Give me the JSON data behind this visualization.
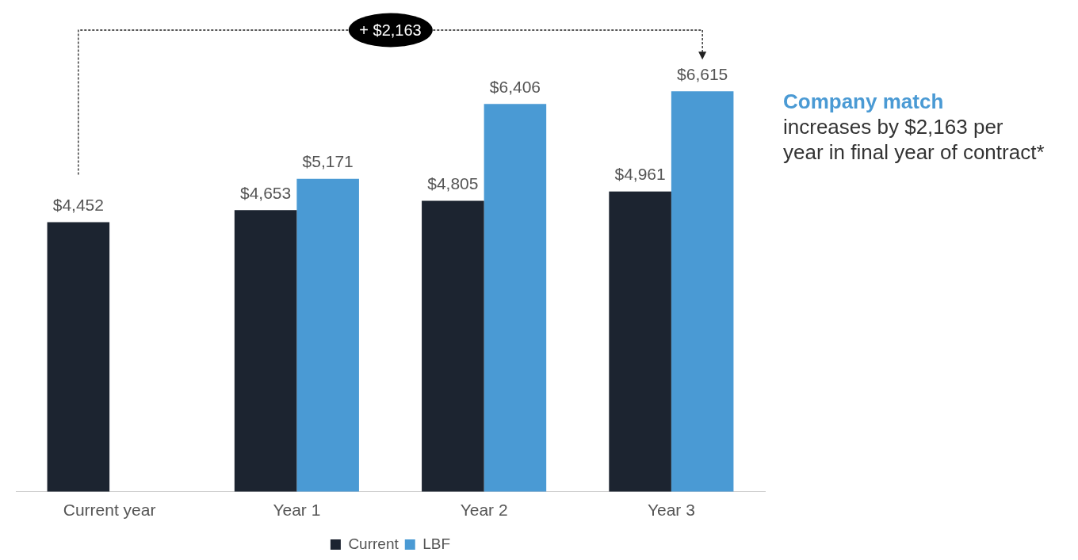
{
  "chart_data": {
    "type": "bar",
    "categories": [
      "Current year",
      "Year 1",
      "Year 2",
      "Year 3"
    ],
    "series": [
      {
        "name": "Current",
        "color": "#1c2430",
        "values": [
          4452,
          4653,
          4805,
          4961
        ],
        "value_labels": [
          "$4,452",
          "$4,653",
          "$4,805",
          "$4,961"
        ]
      },
      {
        "name": "LBF",
        "color": "#4a9ad4",
        "values": [
          null,
          5171,
          6406,
          6615
        ],
        "value_labels": [
          null,
          "$5,171",
          "$6,406",
          "$6,615"
        ]
      }
    ],
    "ylim": [
      0,
      7600
    ],
    "tick_labels": "x",
    "grid": false,
    "legend": "bottom",
    "annotations": [
      "+ $2,163",
      "Company match",
      "increases by $2,163 per year in final year of contract*"
    ]
  }
}
